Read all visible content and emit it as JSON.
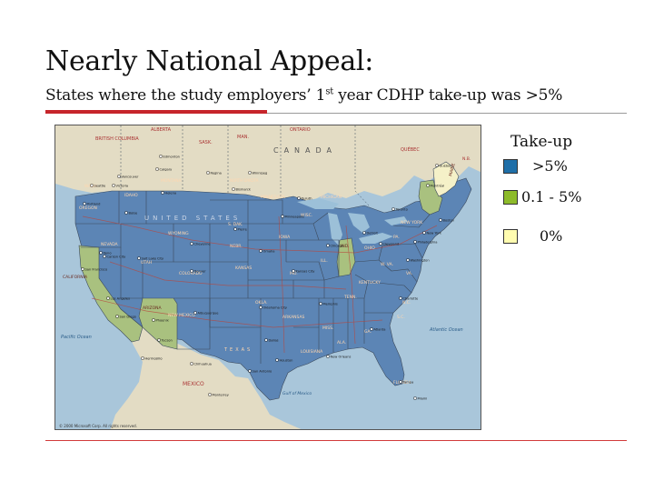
{
  "slide": {
    "title": "Nearly National Appeal:",
    "subtitle_main": "States where the study employers’ 1",
    "subtitle_sup": "st",
    "subtitle_rest": " year CDHP take-up was >5%"
  },
  "legend": {
    "title": "Take-up",
    "items": [
      {
        "label": ">5%",
        "color": "#1f6fa8"
      },
      {
        "label": "0.1 - 5%",
        "color": "#8dbb2a"
      },
      {
        "label": "0%",
        "color": "#fffcb0"
      }
    ]
  },
  "map": {
    "colors": {
      "ocean": "#a9c6da",
      "land_foreign": "#e3dcc4",
      "state_high": "#5c85b5",
      "state_mid": "#a9c17f",
      "state_zero": "#f5f1c8",
      "borders": "#3c4a5c",
      "lake": "#9cc0d8"
    },
    "state_groups": {
      "high": ">5%",
      "mid": [
        "CALIFORNIA",
        "ARIZONA",
        "INDIANA",
        "VERMONT",
        "NEW HAMPSHIRE"
      ],
      "zero": [
        "MAINE"
      ]
    },
    "labels": {
      "provinces": [
        "BRITISH COLUMBIA",
        "ALBERTA",
        "SASK.",
        "MAN.",
        "ONTARIO",
        "QUÉBEC",
        "N.B."
      ],
      "countries": [
        "CANADA",
        "UNITED STATES",
        "MEXICO"
      ],
      "states": [
        "WASH.",
        "OREGON",
        "IDAHO",
        "MONTANA",
        "NORTH DAKOTA",
        "S. DAK.",
        "MINNESOTA",
        "WYOMING",
        "NEVADA",
        "UTAH",
        "COLORADO",
        "NEBR.",
        "IOWA",
        "KANSAS",
        "MO.",
        "CALIFORNIA",
        "ARIZONA",
        "NEW MEXICO",
        "OKLA.",
        "TEXAS",
        "ARKANSAS",
        "LOUISIANA",
        "MISS.",
        "ALA.",
        "GA.",
        "FLORIDA",
        "S.C.",
        "N.C.",
        "TENN.",
        "KENTUCKY",
        "IND.",
        "OHIO",
        "MICHIGAN",
        "WISC.",
        "ILL.",
        "W. VA.",
        "VA.",
        "PA.",
        "NEW YORK",
        "MAINE"
      ],
      "cities": [
        "Seattle",
        "Portland",
        "Boise",
        "Helena",
        "Bismarck",
        "Pierre",
        "Cheyenne",
        "Denver",
        "Salt Lake City",
        "Reno",
        "Carson City",
        "San Francisco",
        "Los Angeles",
        "San Diego",
        "Phoenix",
        "Tucson",
        "Albuquerque",
        "Dallas",
        "Houston",
        "San Antonio",
        "Oklahoma City",
        "Memphis",
        "New Orleans",
        "Atlanta",
        "Miami",
        "Tampa",
        "Chicago",
        "Detroit",
        "Cleveland",
        "Toronto",
        "Montréal",
        "Québec",
        "Boston",
        "New York",
        "Philadelphia",
        "Washington",
        "Charlotte",
        "Kansas City",
        "Omaha",
        "Minneapolis",
        "Duluth",
        "Winnipeg",
        "Regina",
        "Edmonton",
        "Calgary",
        "Vancouver",
        "Victoria",
        "Monterrey",
        "Chihuahua",
        "Hermosillo"
      ],
      "waters": [
        "Pacific Ocean",
        "Atlantic Ocean",
        "Gulf of Mexico"
      ]
    },
    "caption": "© 2000 Microsoft Corp. All rights reserved."
  }
}
